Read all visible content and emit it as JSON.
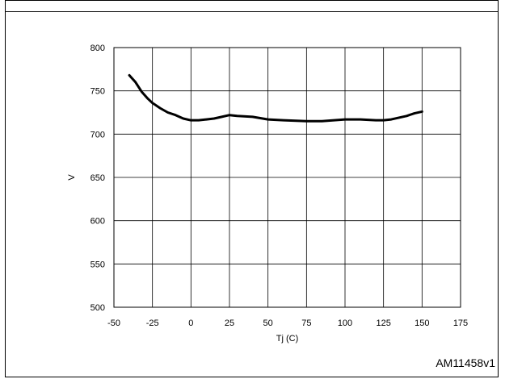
{
  "figure": {
    "code": "AM11458v1"
  },
  "chart_data": {
    "type": "line",
    "xlabel": "Tj (C)",
    "ylabel": "V",
    "xlim": [
      -50,
      175
    ],
    "ylim": [
      500,
      800
    ],
    "x_ticks": [
      -50,
      -25,
      0,
      25,
      50,
      75,
      100,
      125,
      150,
      175
    ],
    "y_ticks": [
      500,
      550,
      600,
      650,
      700,
      750,
      800
    ],
    "grid": true,
    "legend": "none",
    "colors": {
      "line": "#000000",
      "grid": "#000000",
      "axis": "#000000"
    },
    "series": [
      {
        "x": [
          -40,
          -36,
          -32,
          -28,
          -25,
          -20,
          -15,
          -10,
          -5,
          0,
          5,
          10,
          15,
          20,
          25,
          30,
          40,
          50,
          60,
          75,
          85,
          100,
          110,
          120,
          125,
          130,
          135,
          140,
          145,
          150
        ],
        "values": [
          768,
          760,
          749,
          741,
          736,
          730,
          725,
          722,
          718,
          716,
          716,
          717,
          718,
          720,
          722,
          721,
          720,
          717,
          716,
          715,
          715,
          717,
          717,
          716,
          716,
          717,
          719,
          721,
          724,
          726
        ]
      }
    ]
  }
}
